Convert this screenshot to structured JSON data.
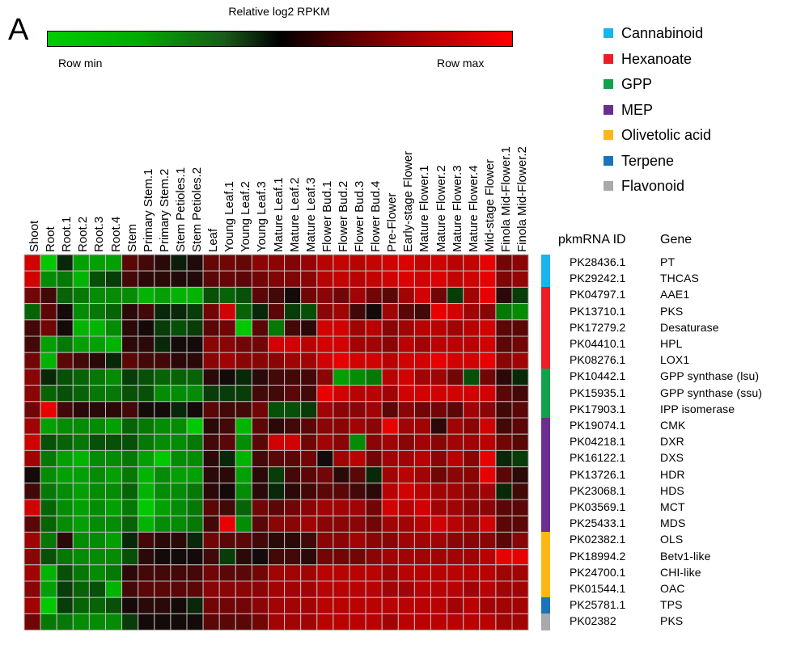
{
  "chart_data": {
    "type": "heatmap",
    "panel_label": "A",
    "color_scale": {
      "title": "Relative log2 RPKM",
      "min_label": "Row min",
      "max_label": "Row max",
      "colors": [
        "#00cc00",
        "#000000",
        "#ff0000"
      ]
    },
    "columns": [
      "Shoot",
      "Root",
      "Root.1",
      "Root.2",
      "Root.3",
      "Root.4",
      "Stem",
      "Primary Stem.1",
      "Primary Stem.2",
      "Stem Petioles.1",
      "Stem Petioles.2",
      "Leaf",
      "Young Leaf.1",
      "Young Leaf.2",
      "Young Leaf.3",
      "Mature Leaf.1",
      "Mature Leaf.2",
      "Mature Leaf.3",
      "Flower Bud.1",
      "Flower Bud.2",
      "Flower Bud.3",
      "Flower Bud.4",
      "Pre-Flower",
      "Early-stage Flower",
      "Mature Flower.1",
      "Mature Flower.2",
      "Mature Flower.3",
      "Mature Flower.4",
      "Mid-stage Flower",
      "Finola Mid-Flower.1",
      "Finola Mid-Flower.2"
    ],
    "row_header_id": "pkmRNA ID",
    "row_header_gene": "Gene",
    "rows": [
      {
        "id": "PK28436.1",
        "gene": "PT",
        "pathway": "Cannabinoid"
      },
      {
        "id": "PK29242.1",
        "gene": "THCAS",
        "pathway": "Cannabinoid"
      },
      {
        "id": "PK04797.1",
        "gene": "AAE1",
        "pathway": "Hexanoate"
      },
      {
        "id": "PK13710.1",
        "gene": "PKS",
        "pathway": "Hexanoate"
      },
      {
        "id": "PK17279.2",
        "gene": "Desaturase",
        "pathway": "Hexanoate"
      },
      {
        "id": "PK04410.1",
        "gene": "HPL",
        "pathway": "Hexanoate"
      },
      {
        "id": "PK08276.1",
        "gene": "LOX1",
        "pathway": "Hexanoate"
      },
      {
        "id": "PK10442.1",
        "gene": "GPP synthase (lsu)",
        "pathway": "GPP"
      },
      {
        "id": "PK15935.1",
        "gene": "GPP synthase (ssu)",
        "pathway": "GPP"
      },
      {
        "id": "PK17903.1",
        "gene": "IPP isomerase",
        "pathway": "GPP"
      },
      {
        "id": "PK19074.1",
        "gene": "CMK",
        "pathway": "MEP"
      },
      {
        "id": "PK04218.1",
        "gene": "DXR",
        "pathway": "MEP"
      },
      {
        "id": "PK16122.1",
        "gene": "DXS",
        "pathway": "MEP"
      },
      {
        "id": "PK13726.1",
        "gene": "HDR",
        "pathway": "MEP"
      },
      {
        "id": "PK23068.1",
        "gene": "HDS",
        "pathway": "MEP"
      },
      {
        "id": "PK03569.1",
        "gene": "MCT",
        "pathway": "MEP"
      },
      {
        "id": "PK25433.1",
        "gene": "MDS",
        "pathway": "MEP"
      },
      {
        "id": "PK02382.1",
        "gene": "OLS",
        "pathway": "Olivetolic acid"
      },
      {
        "id": "PK18994.2",
        "gene": "Betv1-like",
        "pathway": "Olivetolic acid"
      },
      {
        "id": "PK24700.1",
        "gene": "CHI-like",
        "pathway": "Olivetolic acid"
      },
      {
        "id": "PK01544.1",
        "gene": "OAC",
        "pathway": "Olivetolic acid"
      },
      {
        "id": "PK25781.1",
        "gene": "TPS",
        "pathway": "Terpene"
      },
      {
        "id": "PK02382",
        "gene": "PKS",
        "pathway": "Flavonoid"
      }
    ],
    "legend": [
      {
        "name": "Cannabinoid",
        "color": "#19b3ee"
      },
      {
        "name": "Hexanoate",
        "color": "#ee1c24"
      },
      {
        "name": "GPP",
        "color": "#13a14b"
      },
      {
        "name": "MEP",
        "color": "#6a2d91"
      },
      {
        "name": "Olivetolic acid",
        "color": "#fcb712"
      },
      {
        "name": "Terpene",
        "color": "#1b74bb"
      },
      {
        "name": "Flavonoid",
        "color": "#a7a9ac"
      }
    ],
    "values": [
      [
        0.8,
        -0.9,
        -0.1,
        -0.7,
        -0.7,
        -0.7,
        0.3,
        0.2,
        0.1,
        -0.05,
        0.05,
        0.35,
        0.4,
        0.35,
        0.5,
        0.5,
        0.45,
        0.55,
        0.7,
        0.75,
        0.7,
        0.75,
        0.8,
        0.85,
        0.75,
        0.8,
        0.7,
        0.75,
        0.9,
        0.4,
        0.5
      ],
      [
        0.8,
        -0.6,
        -0.5,
        -0.8,
        -0.3,
        -0.2,
        0.2,
        0.1,
        0.1,
        0.05,
        0.05,
        0.3,
        0.35,
        0.3,
        0.4,
        0.45,
        0.45,
        0.5,
        0.7,
        0.75,
        0.7,
        0.75,
        0.8,
        0.85,
        0.8,
        0.85,
        0.75,
        0.8,
        0.9,
        0.45,
        0.55
      ],
      [
        0.4,
        0.2,
        -0.4,
        -0.5,
        -0.6,
        -0.6,
        -0.6,
        -0.8,
        -0.7,
        -0.8,
        -0.8,
        -0.3,
        -0.4,
        -0.3,
        0.3,
        0.2,
        0.0,
        0.4,
        0.5,
        0.4,
        0.6,
        0.4,
        0.3,
        0.6,
        0.8,
        0.4,
        -0.2,
        0.6,
        0.9,
        0.1,
        -0.2
      ],
      [
        -0.4,
        0.3,
        0.0,
        -0.6,
        -0.5,
        -0.4,
        0.1,
        0.2,
        -0.1,
        -0.1,
        -0.2,
        0.4,
        0.8,
        -0.4,
        -0.1,
        0.3,
        -0.2,
        -0.3,
        0.5,
        0.6,
        0.2,
        0.0,
        0.6,
        0.3,
        0.2,
        0.9,
        0.8,
        0.6,
        0.5,
        -0.5,
        -0.6
      ],
      [
        0.2,
        0.4,
        0.0,
        -0.8,
        -0.8,
        -0.6,
        0.1,
        0.0,
        -0.2,
        -0.3,
        -0.2,
        0.3,
        0.4,
        -0.9,
        0.3,
        -0.5,
        0.2,
        0.1,
        0.8,
        0.8,
        0.6,
        0.7,
        0.5,
        0.6,
        0.7,
        0.7,
        0.6,
        0.7,
        0.8,
        0.3,
        0.3
      ],
      [
        0.2,
        -0.7,
        -0.5,
        -0.7,
        -0.7,
        -0.8,
        0.1,
        0.1,
        -0.1,
        0.0,
        0.0,
        0.5,
        0.5,
        0.4,
        0.4,
        0.8,
        0.8,
        0.7,
        0.8,
        0.8,
        0.6,
        0.6,
        0.5,
        0.7,
        0.6,
        0.7,
        0.7,
        0.7,
        0.8,
        0.3,
        0.4
      ],
      [
        0.4,
        -0.8,
        0.3,
        0.2,
        0.1,
        -0.1,
        0.3,
        0.2,
        0.2,
        0.1,
        0.1,
        0.5,
        0.6,
        0.5,
        0.5,
        0.5,
        0.6,
        0.6,
        0.8,
        0.9,
        0.8,
        0.8,
        0.7,
        0.8,
        0.8,
        0.9,
        0.8,
        0.8,
        0.9,
        0.5,
        0.6
      ],
      [
        0.5,
        -0.1,
        -0.3,
        -0.4,
        -0.5,
        -0.6,
        -0.2,
        -0.3,
        -0.4,
        -0.4,
        -0.4,
        0.1,
        0.0,
        -0.1,
        0.1,
        0.2,
        0.2,
        0.2,
        0.5,
        -0.7,
        -0.6,
        -0.5,
        0.7,
        0.8,
        0.6,
        0.6,
        0.4,
        -0.3,
        0.4,
        0.1,
        -0.1
      ],
      [
        0.5,
        -0.4,
        -0.3,
        -0.4,
        -0.5,
        -0.5,
        -0.3,
        -0.3,
        -0.6,
        -0.6,
        -0.6,
        -0.2,
        -0.2,
        -0.2,
        0.2,
        0.2,
        0.3,
        0.2,
        0.9,
        0.8,
        0.7,
        0.7,
        0.6,
        0.8,
        0.8,
        0.8,
        0.8,
        0.8,
        0.8,
        0.3,
        0.2
      ],
      [
        0.4,
        0.9,
        0.2,
        0.1,
        0.1,
        0.1,
        0.2,
        0.0,
        0.0,
        -0.1,
        0.0,
        0.3,
        0.2,
        0.2,
        0.4,
        -0.3,
        -0.3,
        -0.2,
        0.6,
        0.5,
        0.5,
        0.6,
        0.3,
        0.5,
        0.4,
        0.4,
        0.3,
        0.6,
        0.5,
        0.2,
        0.3
      ],
      [
        0.6,
        -0.7,
        -0.6,
        -0.6,
        -0.6,
        -0.7,
        -0.4,
        -0.5,
        -0.6,
        -0.6,
        -0.9,
        0.1,
        0.2,
        -0.8,
        0.3,
        0.1,
        0.2,
        0.3,
        0.5,
        0.5,
        0.6,
        0.5,
        0.9,
        0.6,
        0.6,
        0.1,
        0.6,
        0.5,
        0.8,
        0.2,
        0.3
      ],
      [
        0.8,
        -0.3,
        -0.4,
        -0.5,
        -0.3,
        -0.3,
        -0.3,
        -0.5,
        -0.6,
        -0.6,
        -0.5,
        0.2,
        0.3,
        -0.6,
        0.3,
        0.8,
        0.8,
        0.4,
        0.6,
        0.5,
        -0.6,
        0.5,
        0.6,
        0.5,
        0.6,
        0.5,
        0.6,
        0.6,
        0.7,
        0.4,
        0.3
      ],
      [
        0.6,
        -0.5,
        -0.7,
        -0.8,
        -0.6,
        -0.6,
        -0.5,
        -0.7,
        -0.9,
        -0.6,
        -0.6,
        0.1,
        -0.1,
        -0.8,
        0.2,
        0.3,
        0.3,
        0.4,
        0.0,
        0.6,
        0.7,
        0.4,
        0.6,
        0.6,
        0.7,
        0.5,
        0.7,
        0.5,
        0.9,
        -0.1,
        -0.2
      ],
      [
        0.0,
        -0.6,
        -0.7,
        -0.7,
        -0.6,
        -0.7,
        -0.5,
        -0.8,
        -0.6,
        -0.7,
        -0.7,
        0.1,
        0.1,
        -0.7,
        0.1,
        -0.2,
        0.2,
        0.3,
        0.4,
        0.1,
        0.3,
        -0.1,
        0.6,
        0.7,
        0.6,
        0.4,
        0.5,
        0.5,
        0.9,
        0.3,
        0.1
      ],
      [
        0.2,
        -0.5,
        -0.6,
        -0.7,
        -0.6,
        -0.6,
        -0.4,
        -0.8,
        -0.6,
        -0.6,
        -0.5,
        0.1,
        0.0,
        -0.6,
        0.1,
        -0.1,
        0.1,
        0.2,
        0.3,
        0.3,
        0.2,
        0.1,
        0.7,
        0.8,
        0.7,
        0.6,
        0.6,
        0.5,
        0.6,
        -0.1,
        0.2
      ],
      [
        0.8,
        -0.4,
        -0.6,
        -0.7,
        -0.6,
        -0.7,
        -0.5,
        -0.9,
        -0.7,
        -0.6,
        -0.5,
        0.3,
        0.2,
        -0.4,
        0.4,
        0.3,
        0.4,
        0.5,
        0.6,
        0.6,
        0.6,
        0.4,
        0.8,
        0.7,
        0.8,
        0.6,
        0.6,
        0.5,
        0.5,
        0.3,
        0.3
      ],
      [
        0.3,
        -0.4,
        -0.6,
        -0.7,
        -0.6,
        -0.6,
        -0.4,
        -0.8,
        -0.6,
        -0.6,
        -0.5,
        0.2,
        0.9,
        -0.6,
        0.3,
        0.5,
        0.5,
        0.6,
        0.5,
        0.5,
        0.5,
        0.4,
        0.6,
        0.6,
        0.7,
        0.8,
        0.7,
        0.6,
        0.8,
        0.3,
        0.3
      ],
      [
        0.6,
        -0.5,
        0.1,
        -0.6,
        -0.6,
        -0.7,
        -0.1,
        0.2,
        0.1,
        0.1,
        -0.1,
        0.4,
        0.3,
        0.3,
        0.2,
        0.1,
        0.1,
        0.2,
        0.5,
        0.5,
        0.6,
        0.5,
        0.5,
        0.6,
        0.6,
        0.6,
        0.5,
        0.5,
        0.5,
        0.3,
        0.5
      ],
      [
        0.5,
        -0.3,
        -0.5,
        -0.6,
        -0.6,
        -0.6,
        -0.3,
        0.1,
        0.0,
        0.0,
        0.0,
        0.2,
        -0.2,
        0.1,
        0.0,
        0.2,
        0.2,
        0.1,
        0.4,
        0.4,
        0.4,
        0.5,
        0.6,
        0.6,
        0.6,
        0.6,
        0.6,
        0.6,
        0.7,
        0.9,
        0.9
      ],
      [
        0.6,
        -0.8,
        -0.3,
        -0.5,
        -0.6,
        -0.5,
        0.1,
        0.2,
        0.2,
        0.2,
        0.2,
        0.4,
        0.3,
        0.3,
        0.4,
        0.6,
        0.6,
        0.6,
        0.7,
        0.7,
        0.7,
        0.7,
        0.6,
        0.7,
        0.7,
        0.7,
        0.7,
        0.7,
        0.7,
        0.6,
        0.6
      ],
      [
        0.5,
        -0.7,
        -0.2,
        -0.4,
        -0.3,
        -0.8,
        0.2,
        0.3,
        0.3,
        0.3,
        0.3,
        0.5,
        0.5,
        0.5,
        0.5,
        0.6,
        0.6,
        0.6,
        0.7,
        0.7,
        0.7,
        0.7,
        0.6,
        0.6,
        0.7,
        0.7,
        0.7,
        0.6,
        0.7,
        0.6,
        0.6
      ],
      [
        0.6,
        -0.9,
        -0.2,
        -0.4,
        -0.4,
        -0.3,
        0.0,
        0.1,
        0.1,
        0.0,
        -0.1,
        0.4,
        0.4,
        0.4,
        0.5,
        0.6,
        0.6,
        0.6,
        0.7,
        0.7,
        0.7,
        0.7,
        0.7,
        0.7,
        0.7,
        0.7,
        0.6,
        0.7,
        0.6,
        0.6,
        0.6
      ],
      [
        0.4,
        -0.5,
        -0.5,
        -0.6,
        -0.6,
        -0.6,
        -0.2,
        0.0,
        0.0,
        0.0,
        0.0,
        0.3,
        0.3,
        0.3,
        0.4,
        0.6,
        0.6,
        0.6,
        0.7,
        0.7,
        0.7,
        0.7,
        0.6,
        0.7,
        0.7,
        0.7,
        0.7,
        0.7,
        0.7,
        0.6,
        0.6
      ]
    ]
  }
}
